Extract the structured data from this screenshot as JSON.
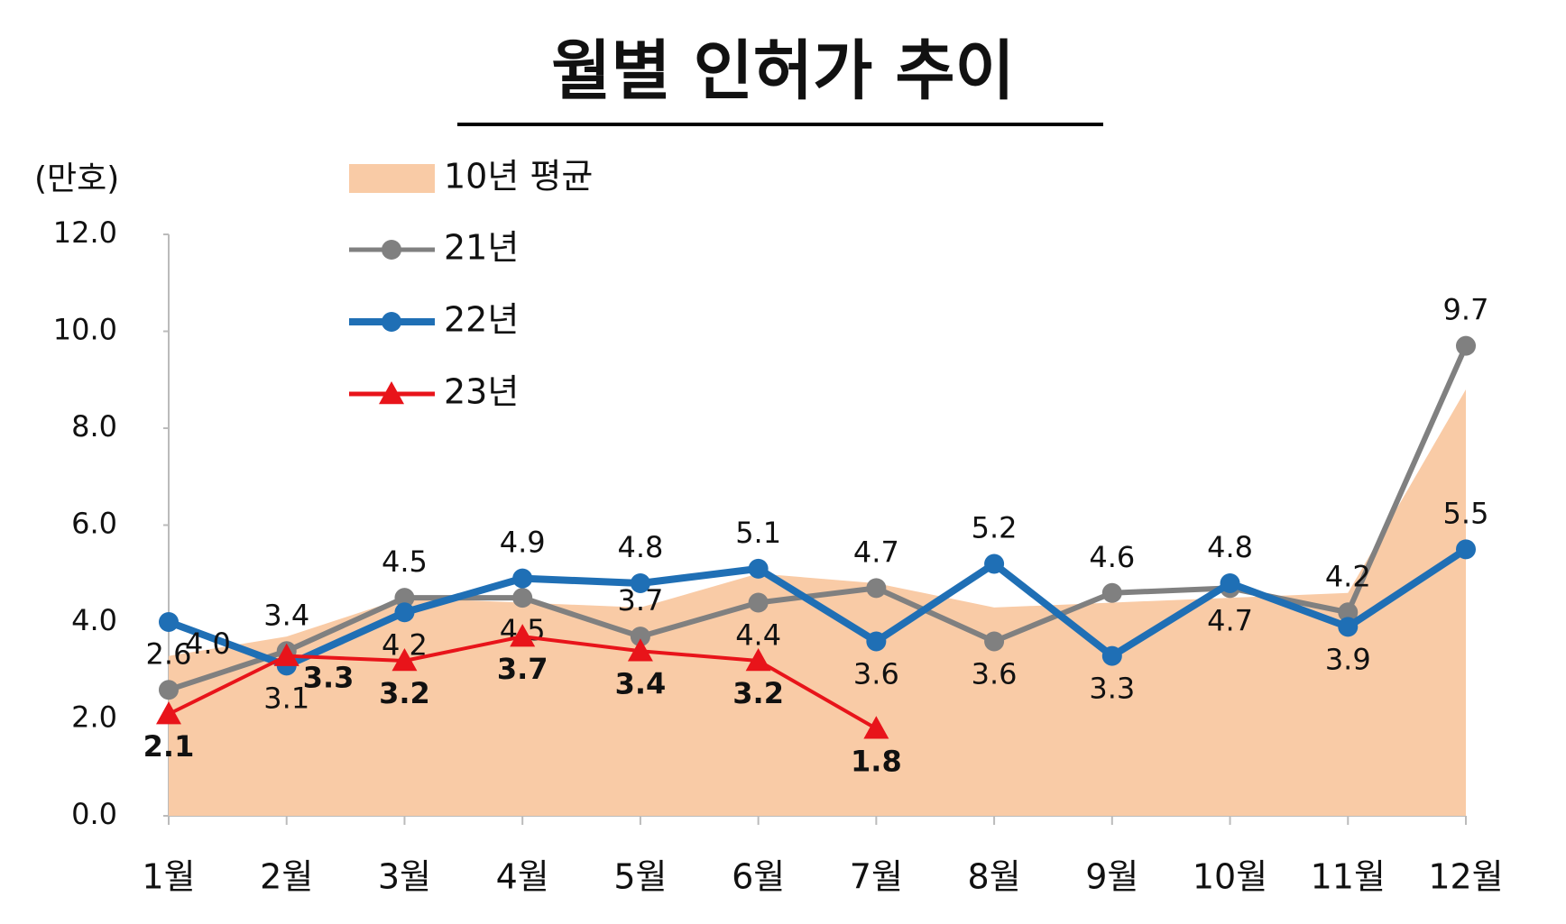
{
  "chart_data": {
    "type": "line",
    "title": "월별 인허가 추이",
    "y_label": "(만호)",
    "categories": [
      "1월",
      "2월",
      "3월",
      "4월",
      "5월",
      "6월",
      "7월",
      "8월",
      "9월",
      "10월",
      "11월",
      "12월"
    ],
    "ylim": [
      0,
      12
    ],
    "yticks": [
      {
        "value": 0,
        "label": "0.0"
      },
      {
        "value": 2,
        "label": "2.0"
      },
      {
        "value": 4,
        "label": "4.0"
      },
      {
        "value": 6,
        "label": "6.0"
      },
      {
        "value": 8,
        "label": "8.0"
      },
      {
        "value": 10,
        "label": "10.0"
      },
      {
        "value": 12,
        "label": "12.0"
      }
    ],
    "grid": false,
    "legend": "top-left",
    "series": [
      {
        "name": "10년 평균",
        "kind": "area",
        "color": "#f9cba6",
        "values": [
          3.3,
          3.7,
          4.5,
          4.4,
          4.3,
          5.0,
          4.8,
          4.3,
          4.4,
          4.5,
          4.6,
          8.8
        ]
      },
      {
        "name": "21년",
        "kind": "line",
        "color": "#808080",
        "marker": "circle",
        "values": [
          2.6,
          3.4,
          4.5,
          4.5,
          3.7,
          4.4,
          4.7,
          3.6,
          4.6,
          4.7,
          4.2,
          9.7
        ],
        "value_labels": [
          "2.6",
          "3.4",
          "4.5",
          "4.5",
          "3.7",
          "4.4",
          "4.7",
          "3.6",
          "4.6",
          "4.7",
          "4.2",
          "9.7"
        ]
      },
      {
        "name": "22년",
        "kind": "line",
        "color": "#1f6fb5",
        "marker": "circle",
        "values": [
          4.0,
          3.1,
          4.2,
          4.9,
          4.8,
          5.1,
          3.6,
          5.2,
          3.3,
          4.8,
          3.9,
          5.5
        ],
        "value_labels": [
          "4.0",
          "3.1",
          "4.2",
          "4.9",
          "4.8",
          "5.1",
          "3.6",
          "5.2",
          "3.3",
          "4.8",
          "3.9",
          "5.5"
        ]
      },
      {
        "name": "23년",
        "kind": "line",
        "color": "#e8141a",
        "marker": "triangle",
        "values": [
          2.1,
          3.3,
          3.2,
          3.7,
          3.4,
          3.2,
          1.8,
          null,
          null,
          null,
          null,
          null
        ],
        "value_labels": [
          "2.1",
          "3.3",
          "3.2",
          "3.7",
          "3.4",
          "3.2",
          "1.8",
          null,
          null,
          null,
          null,
          null
        ]
      }
    ]
  }
}
